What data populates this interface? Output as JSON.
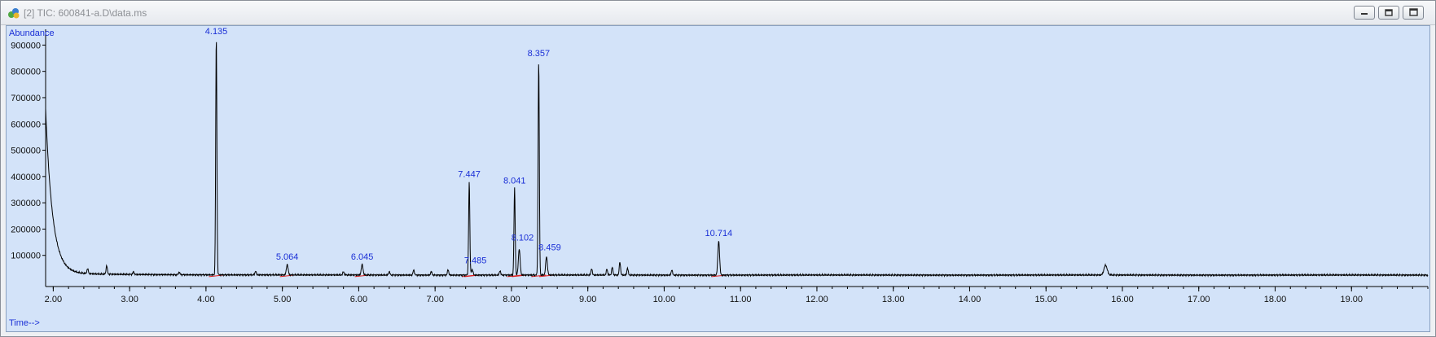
{
  "window": {
    "title": "[2] TIC: 600841-a.D\\data.ms",
    "icons": {
      "app": "chromatogram-app-icon",
      "minimize": "minimize-icon",
      "restore": "restore-icon",
      "close": "close-icon"
    }
  },
  "chart_data": {
    "type": "line",
    "xlabel": "Time-->",
    "ylabel": "Abundance",
    "xlim": [
      1.9,
      20.0
    ],
    "ylim": [
      0,
      960000
    ],
    "x_ticks": [
      2.0,
      3.0,
      4.0,
      5.0,
      6.0,
      7.0,
      8.0,
      9.0,
      10.0,
      11.0,
      12.0,
      13.0,
      14.0,
      15.0,
      16.0,
      17.0,
      18.0,
      19.0
    ],
    "x_tick_labels": [
      "2.00",
      "3.00",
      "4.00",
      "5.00",
      "6.00",
      "7.00",
      "8.00",
      "9.00",
      "10.00",
      "11.00",
      "12.00",
      "13.00",
      "14.00",
      "15.00",
      "16.00",
      "17.00",
      "18.00",
      "19.00"
    ],
    "y_ticks": [
      100000,
      200000,
      300000,
      400000,
      500000,
      600000,
      700000,
      800000,
      900000
    ],
    "y_tick_labels": [
      "100000",
      "200000",
      "300000",
      "400000",
      "500000",
      "600000",
      "700000",
      "800000",
      "900000"
    ],
    "baseline": 25000,
    "peaks": [
      {
        "time": 4.135,
        "label": "4.135",
        "abundance": 930000
      },
      {
        "time": 5.064,
        "label": "5.064",
        "abundance": 65000
      },
      {
        "time": 6.045,
        "label": "6.045",
        "abundance": 65000
      },
      {
        "time": 7.447,
        "label": "7.447",
        "abundance": 380000
      },
      {
        "time": 7.485,
        "label": "7.485",
        "abundance": 45000
      },
      {
        "time": 8.041,
        "label": "8.041",
        "abundance": 355000
      },
      {
        "time": 8.102,
        "label": "8.102",
        "abundance": 125000
      },
      {
        "time": 8.357,
        "label": "8.357",
        "abundance": 840000
      },
      {
        "time": 8.459,
        "label": "8.459",
        "abundance": 95000
      },
      {
        "time": 10.714,
        "label": "10.714",
        "abundance": 155000
      }
    ],
    "minor_peaks": [
      {
        "time": 2.45,
        "abundance": 45000
      },
      {
        "time": 2.7,
        "abundance": 58000
      },
      {
        "time": 3.05,
        "abundance": 35000
      },
      {
        "time": 3.65,
        "abundance": 35000
      },
      {
        "time": 4.65,
        "abundance": 40000
      },
      {
        "time": 5.8,
        "abundance": 38000
      },
      {
        "time": 6.4,
        "abundance": 38000
      },
      {
        "time": 6.72,
        "abundance": 45000
      },
      {
        "time": 6.95,
        "abundance": 38000
      },
      {
        "time": 7.17,
        "abundance": 45000
      },
      {
        "time": 7.85,
        "abundance": 42000
      },
      {
        "time": 9.05,
        "abundance": 50000
      },
      {
        "time": 9.25,
        "abundance": 48000
      },
      {
        "time": 9.32,
        "abundance": 55000
      },
      {
        "time": 9.42,
        "abundance": 75000
      },
      {
        "time": 9.52,
        "abundance": 52000
      },
      {
        "time": 10.1,
        "abundance": 45000
      },
      {
        "time": 15.78,
        "abundance": 62000
      }
    ],
    "solvent_front": {
      "start_time": 1.9,
      "start_abundance": 650000
    },
    "colors": {
      "trace": "#000000",
      "labels": "#1a2fd6",
      "integration": "#e02020",
      "background": "#d3e3f9"
    }
  }
}
